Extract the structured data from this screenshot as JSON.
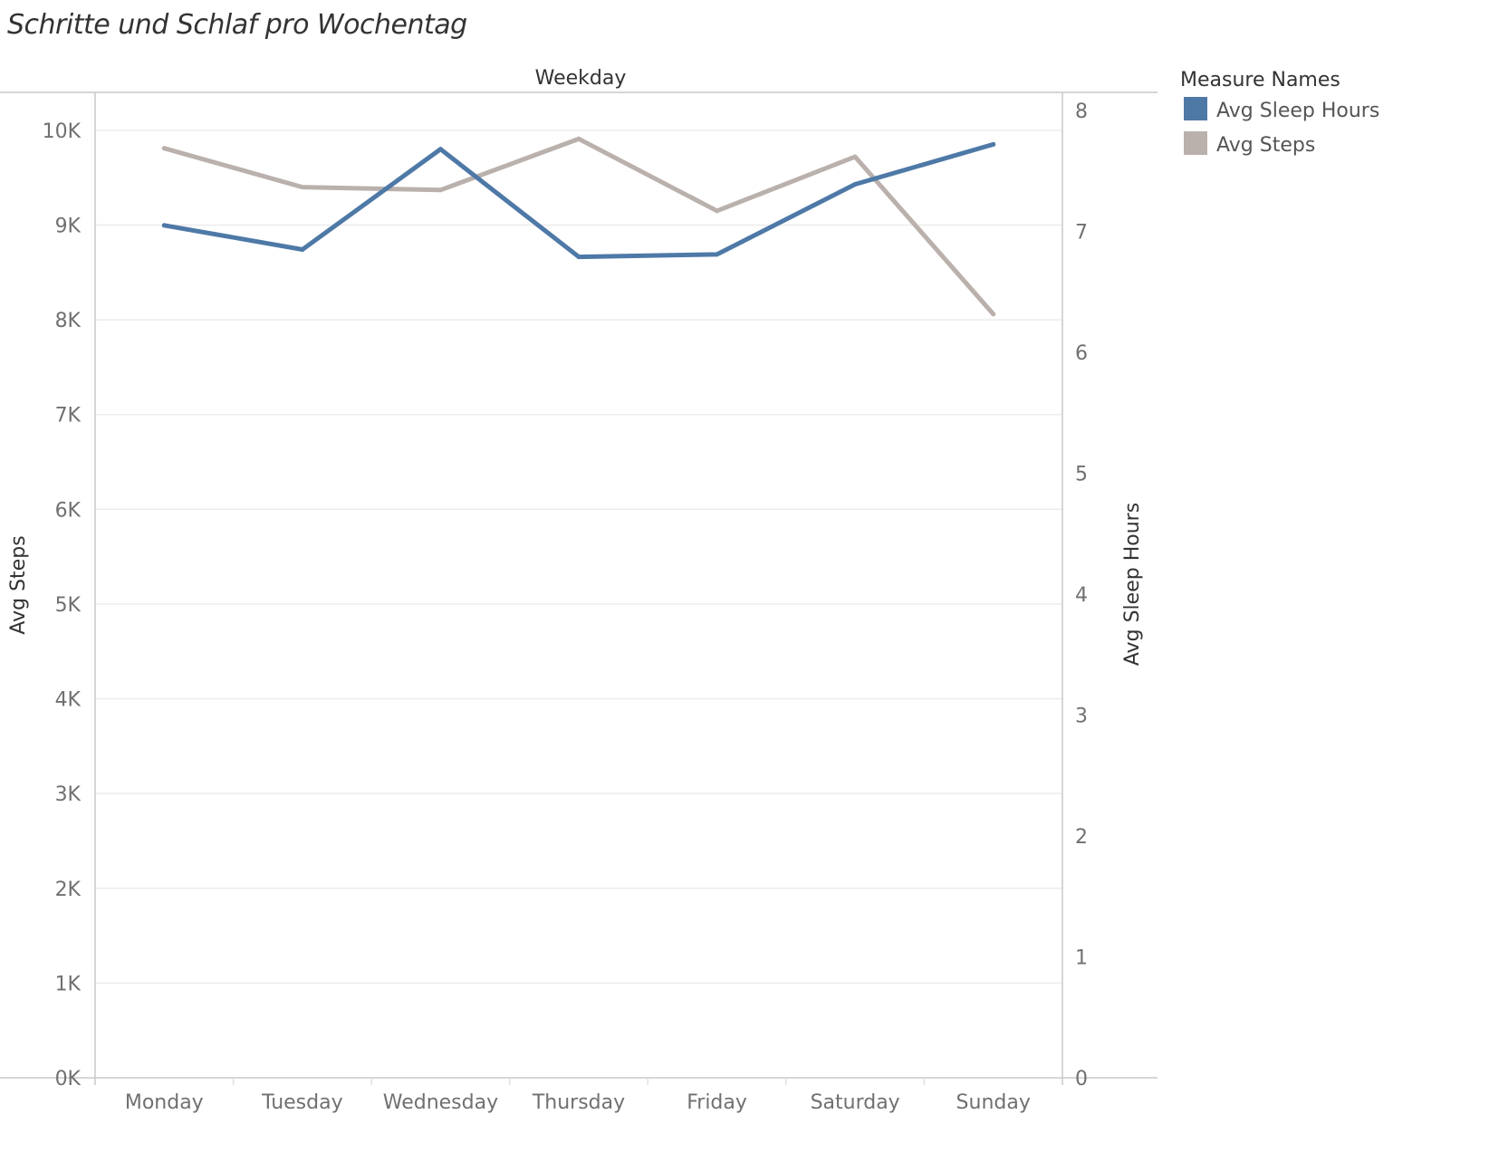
{
  "chart_data": {
    "type": "line",
    "title": "Schritte und Schlaf pro Wochentag",
    "column_header": "Weekday",
    "categories": [
      "Monday",
      "Tuesday",
      "Wednesday",
      "Thursday",
      "Friday",
      "Saturday",
      "Sunday"
    ],
    "y_left": {
      "label": "Avg Steps",
      "range": [
        0,
        10400
      ],
      "ticks": [
        0,
        1000,
        2000,
        3000,
        4000,
        5000,
        6000,
        7000,
        8000,
        9000,
        10000
      ],
      "tick_labels": [
        "0K",
        "1K",
        "2K",
        "3K",
        "4K",
        "5K",
        "6K",
        "7K",
        "8K",
        "9K",
        "10K"
      ]
    },
    "y_right": {
      "label": "Avg Sleep Hours",
      "range": [
        0,
        8.15
      ],
      "ticks": [
        0,
        1,
        2,
        3,
        4,
        5,
        6,
        7,
        8
      ],
      "tick_labels": [
        "0",
        "1",
        "2",
        "3",
        "4",
        "5",
        "6",
        "7",
        "8"
      ]
    },
    "grid": "horizontal",
    "legend": {
      "title": "Measure Names",
      "placement": "top-right"
    },
    "series": [
      {
        "name": "Avg Sleep Hours",
        "axis": "right",
        "color": "#4e79a7",
        "values": [
          7.05,
          6.85,
          7.68,
          6.79,
          6.81,
          7.39,
          7.72
        ]
      },
      {
        "name": "Avg Steps",
        "axis": "left",
        "color": "#bab0ac",
        "values": [
          9810,
          9400,
          9370,
          9910,
          9150,
          9720,
          8060
        ]
      }
    ]
  }
}
